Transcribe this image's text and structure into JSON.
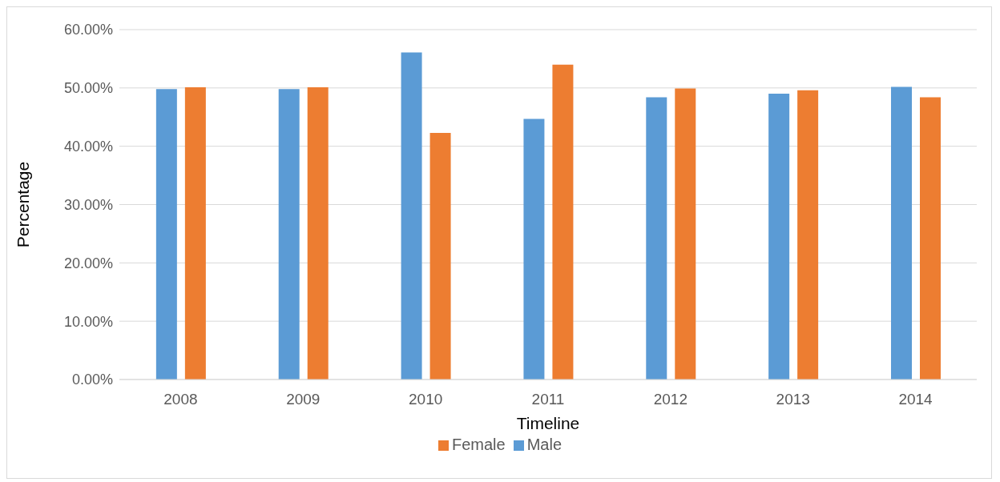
{
  "chart_data": {
    "type": "bar",
    "xlabel": "Timeline",
    "ylabel": "Percentage",
    "categories": [
      "2008",
      "2009",
      "2010",
      "2011",
      "2012",
      "2013",
      "2014"
    ],
    "series": [
      {
        "name": "Male",
        "color": "#5b9bd5",
        "values": [
          49.8,
          49.8,
          56.1,
          44.7,
          48.4,
          49.0,
          50.2
        ]
      },
      {
        "name": "Female",
        "color": "#ed7d31",
        "values": [
          50.1,
          50.1,
          42.3,
          54.0,
          49.9,
          49.6,
          48.4
        ]
      }
    ],
    "ylim": [
      0,
      60
    ],
    "yticks": [
      {
        "value": 0,
        "label": "0.00%"
      },
      {
        "value": 10,
        "label": "10.00%"
      },
      {
        "value": 20,
        "label": "20.00%"
      },
      {
        "value": 30,
        "label": "30.00%"
      },
      {
        "value": 40,
        "label": "40.00%"
      },
      {
        "value": 50,
        "label": "50.00%"
      },
      {
        "value": 60,
        "label": "60.00%"
      }
    ],
    "grid": "y",
    "legend": "bottom"
  }
}
